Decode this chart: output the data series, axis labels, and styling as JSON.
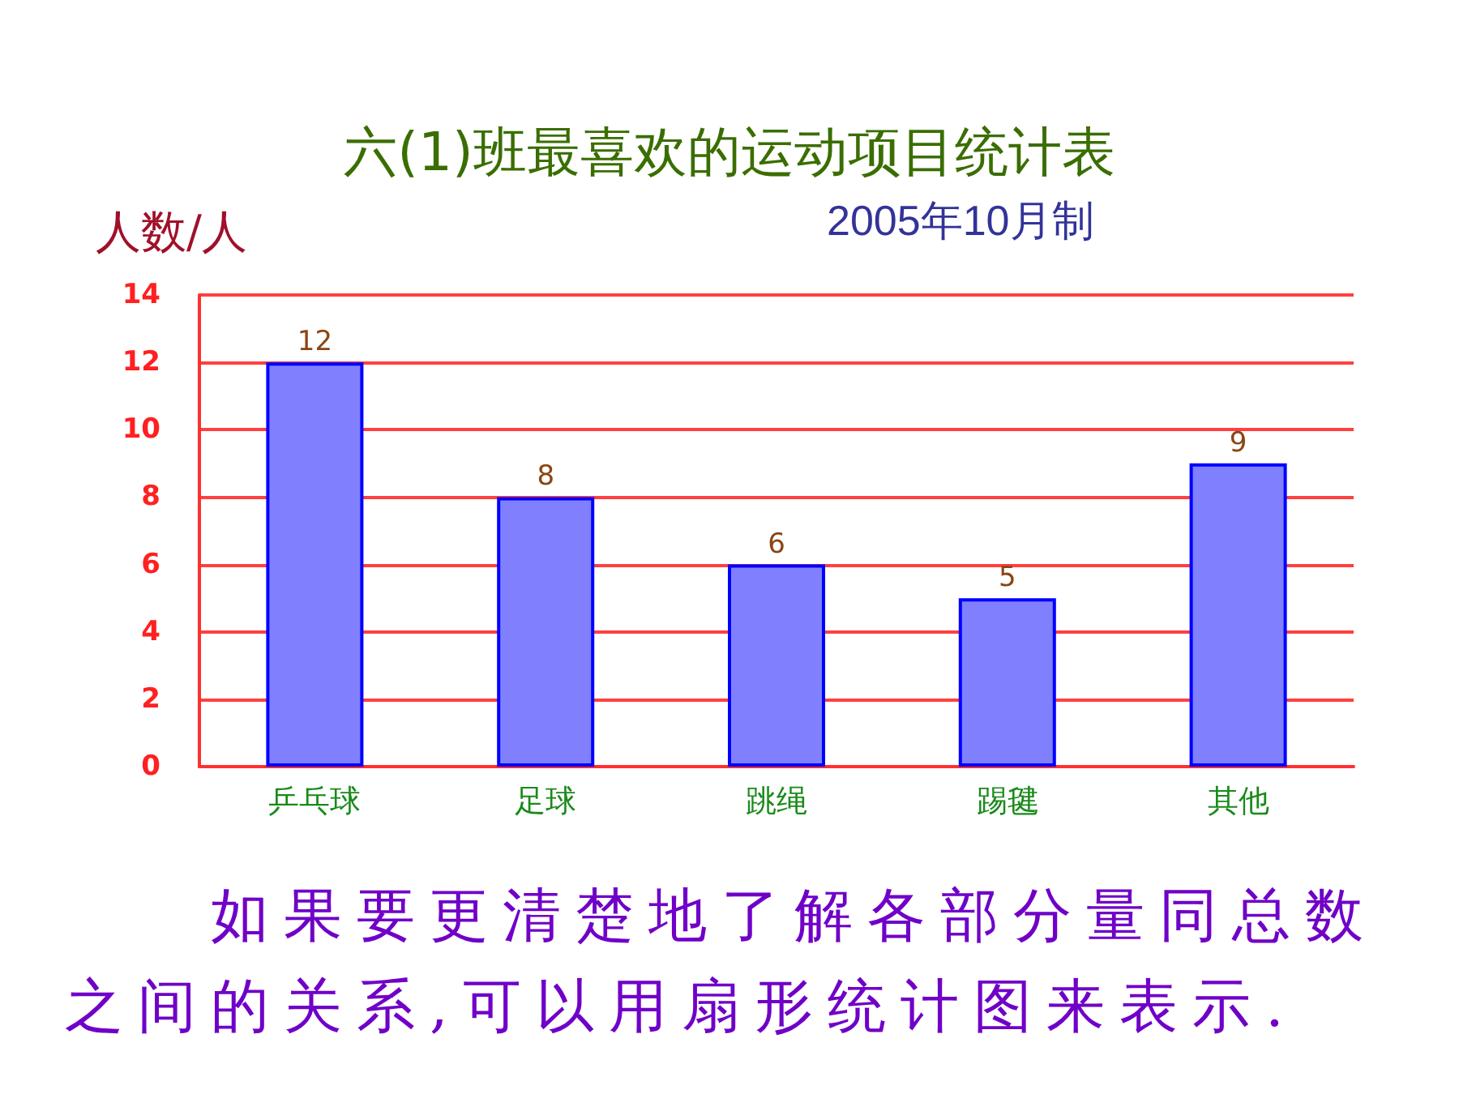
{
  "chart_data": {
    "type": "bar",
    "title": "六(1)班最喜欢的运动项目统计表",
    "subtitle": "2005年10月制",
    "ylabel": "人数/人",
    "categories": [
      "乒乓球",
      "足球",
      "跳绳",
      "踢毽",
      "其他"
    ],
    "values": [
      12,
      8,
      6,
      5,
      9
    ],
    "color": "#8080ff",
    "ylim": [
      0,
      14
    ],
    "yticks": [
      0,
      2,
      4,
      6,
      8,
      10,
      12,
      14
    ],
    "grid": "y",
    "data_labels": true,
    "annotations": [
      "如果要更清楚地了解各部分量同总数之间的关系,可以用扇形统计图来表示."
    ]
  }
}
